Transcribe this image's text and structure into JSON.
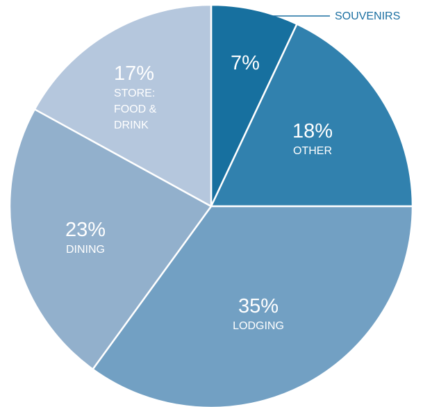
{
  "chart_data": {
    "type": "pie",
    "unit": "%",
    "start_angle_deg": 0,
    "direction": "clockwise",
    "slices": [
      {
        "label": "SOUVENIRS",
        "value": 7,
        "color": "#17709f",
        "callout": true
      },
      {
        "label": "OTHER",
        "value": 18,
        "color": "#3181ae"
      },
      {
        "label": "LODGING",
        "value": 35,
        "color": "#72a0c3"
      },
      {
        "label": "DINING",
        "value": 23,
        "color": "#92b0cc"
      },
      {
        "label": "STORE: FOOD & DRINK",
        "label_lines": [
          "STORE:",
          "FOOD &",
          "DRINK"
        ],
        "value": 17,
        "color": "#b5c7dd"
      }
    ],
    "callout_color": "#1a6fa1"
  }
}
